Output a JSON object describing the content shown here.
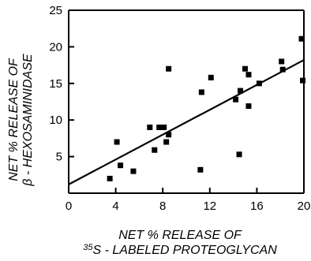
{
  "chart_data": {
    "type": "scatter",
    "title": "",
    "xlabel": {
      "line1": "NET % RELEASE OF",
      "line2_sup": "35",
      "line2_main": "S - LABELED PROTEOGLYCAN"
    },
    "ylabel": {
      "line1": "NET % RELEASE OF",
      "line2": "β - HEXOSAMINIDASE"
    },
    "xlim": [
      0,
      20
    ],
    "ylim": [
      0,
      25
    ],
    "x_ticks": [
      0,
      4,
      8,
      12,
      16,
      20
    ],
    "x_tick_labels": [
      "0",
      "4",
      "8",
      "12",
      "16",
      "20"
    ],
    "y_ticks": [
      5,
      10,
      15,
      20,
      25
    ],
    "y_tick_labels": [
      "5",
      "10",
      "15",
      "20",
      "25"
    ],
    "grid": false,
    "points": [
      {
        "x": 3.5,
        "y": 2.0
      },
      {
        "x": 4.1,
        "y": 7.0
      },
      {
        "x": 4.4,
        "y": 3.8
      },
      {
        "x": 5.5,
        "y": 3.0
      },
      {
        "x": 6.9,
        "y": 9.0
      },
      {
        "x": 7.3,
        "y": 5.9
      },
      {
        "x": 7.7,
        "y": 9.0
      },
      {
        "x": 8.1,
        "y": 9.0
      },
      {
        "x": 8.3,
        "y": 7.0
      },
      {
        "x": 8.5,
        "y": 8.0
      },
      {
        "x": 8.5,
        "y": 17.0
      },
      {
        "x": 11.2,
        "y": 3.2
      },
      {
        "x": 11.3,
        "y": 13.8
      },
      {
        "x": 12.1,
        "y": 15.8
      },
      {
        "x": 14.2,
        "y": 12.8
      },
      {
        "x": 14.5,
        "y": 5.3
      },
      {
        "x": 14.6,
        "y": 14.0
      },
      {
        "x": 15.0,
        "y": 17.0
      },
      {
        "x": 15.3,
        "y": 16.2
      },
      {
        "x": 15.3,
        "y": 11.9
      },
      {
        "x": 16.2,
        "y": 15.0
      },
      {
        "x": 18.1,
        "y": 18.0
      },
      {
        "x": 18.2,
        "y": 16.9
      },
      {
        "x": 19.8,
        "y": 21.1
      },
      {
        "x": 19.9,
        "y": 15.4
      }
    ],
    "regression_line": {
      "x": [
        0,
        20
      ],
      "y": [
        1.2,
        18.2
      ]
    }
  }
}
